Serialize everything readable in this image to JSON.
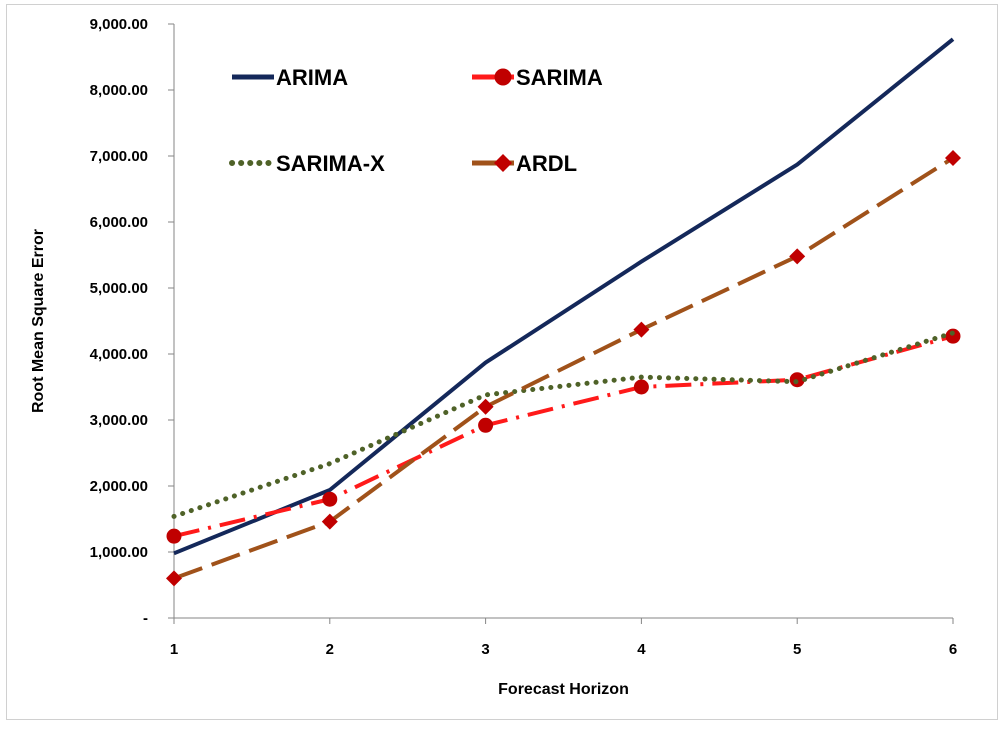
{
  "chart_data": {
    "type": "line",
    "title": "",
    "xlabel": "Forecast Horizon",
    "ylabel": "Root Mean Square  Error",
    "x": [
      1,
      2,
      3,
      4,
      5,
      6
    ],
    "x_ticks": [
      "1",
      "2",
      "3",
      "4",
      "5",
      "6"
    ],
    "ylim": [
      0,
      9000
    ],
    "y_ticks": [
      "-",
      "1,000.00",
      "2,000.00",
      "3,000.00",
      "4,000.00",
      "5,000.00",
      "6,000.00",
      "7,000.00",
      "8,000.00",
      "9,000.00"
    ],
    "grid": false,
    "legend_position": "top-left",
    "series": [
      {
        "name": "ARIMA",
        "values": [
          980,
          1940,
          3870,
          5400,
          6870,
          8770
        ],
        "color": "#14285A",
        "style": "solid",
        "marker": "none"
      },
      {
        "name": "SARIMA",
        "values": [
          1240,
          1800,
          2920,
          3500,
          3610,
          4270
        ],
        "color": "#FF1A1A",
        "style": "dash-dot",
        "marker": "circle",
        "marker_color": "#C00000"
      },
      {
        "name": "SARIMA-X",
        "values": [
          1540,
          2340,
          3380,
          3650,
          3580,
          4320
        ],
        "color": "#4F6228",
        "style": "dotted",
        "marker": "none"
      },
      {
        "name": "ARDL",
        "values": [
          600,
          1460,
          3200,
          4370,
          5480,
          6970
        ],
        "color": "#A0521A",
        "style": "long-dash",
        "marker": "diamond",
        "marker_color": "#C00000"
      }
    ]
  }
}
